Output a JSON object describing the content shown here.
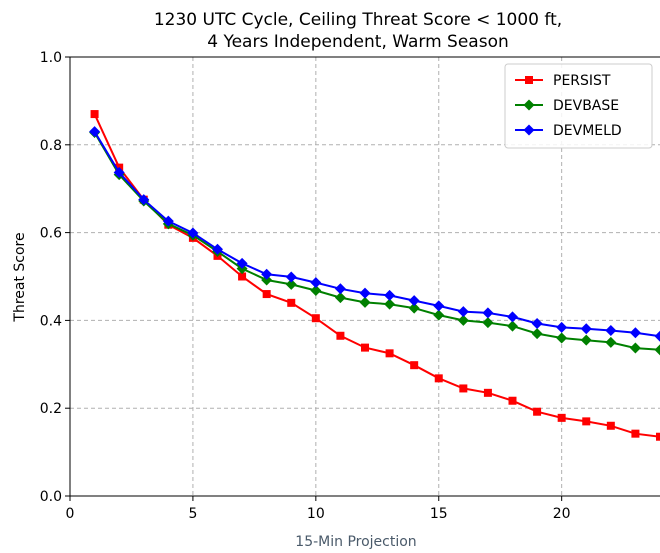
{
  "chart_data": {
    "type": "line",
    "title_lines": [
      "1230 UTC Cycle, Ceiling Threat Score < 1000 ft,",
      "4 Years Independent, Warm Season"
    ],
    "xlabel": "15-Min Projection",
    "ylabel": "Threat Score",
    "xlim": [
      0,
      24
    ],
    "ylim": [
      0.0,
      1.0
    ],
    "xticks": [
      0,
      5,
      10,
      15,
      20
    ],
    "yticks": [
      0.0,
      0.2,
      0.4,
      0.6,
      0.8,
      1.0
    ],
    "xtick_labels": [
      "0",
      "5",
      "10",
      "15",
      "20"
    ],
    "ytick_labels": [
      "0.0",
      "0.2",
      "0.4",
      "0.6",
      "0.8",
      "1.0"
    ],
    "grid": true,
    "legend_position": "top-right",
    "x": [
      1,
      2,
      3,
      4,
      5,
      6,
      7,
      8,
      9,
      10,
      11,
      12,
      13,
      14,
      15,
      16,
      17,
      18,
      19,
      20,
      21,
      22,
      23,
      24
    ],
    "series": [
      {
        "name": "PERSIST",
        "color": "#ff0000",
        "marker": "square",
        "values": [
          0.87,
          0.748,
          0.675,
          0.618,
          0.588,
          0.547,
          0.5,
          0.46,
          0.44,
          0.405,
          0.365,
          0.338,
          0.325,
          0.298,
          0.268,
          0.245,
          0.235,
          0.217,
          0.192,
          0.178,
          0.17,
          0.16,
          0.142,
          0.135
        ]
      },
      {
        "name": "DEVBASE",
        "color": "#008000",
        "marker": "diamond",
        "values": [
          0.828,
          0.732,
          0.672,
          0.62,
          0.594,
          0.557,
          0.518,
          0.492,
          0.482,
          0.468,
          0.452,
          0.441,
          0.437,
          0.428,
          0.412,
          0.4,
          0.395,
          0.387,
          0.37,
          0.36,
          0.355,
          0.35,
          0.337,
          0.333
        ]
      },
      {
        "name": "DEVMELD",
        "color": "#0000ff",
        "marker": "diamond",
        "values": [
          0.83,
          0.737,
          0.675,
          0.626,
          0.599,
          0.562,
          0.53,
          0.505,
          0.499,
          0.486,
          0.472,
          0.462,
          0.457,
          0.445,
          0.433,
          0.42,
          0.417,
          0.408,
          0.393,
          0.384,
          0.381,
          0.377,
          0.372,
          0.364
        ]
      }
    ]
  }
}
